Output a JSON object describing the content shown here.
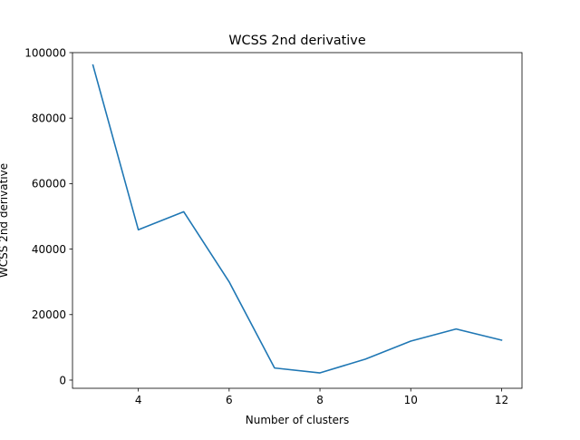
{
  "chart_data": {
    "type": "line",
    "title": "WCSS 2nd derivative",
    "xlabel": "Number of clusters",
    "ylabel": "WCSS 2nd derivative",
    "xlim": [
      2.55,
      12.45
    ],
    "ylim": [
      -2500,
      100000
    ],
    "xticks": [
      4,
      6,
      8,
      10,
      12
    ],
    "yticks": [
      0,
      20000,
      40000,
      60000,
      80000,
      100000
    ],
    "grid": false,
    "series": [
      {
        "color": "#1f77b4",
        "x": [
          3,
          4,
          5,
          6,
          7,
          8,
          9,
          10,
          11,
          12
        ],
        "y": [
          96200,
          45900,
          51400,
          30000,
          3700,
          2200,
          6400,
          11900,
          15600,
          12200
        ]
      }
    ]
  }
}
